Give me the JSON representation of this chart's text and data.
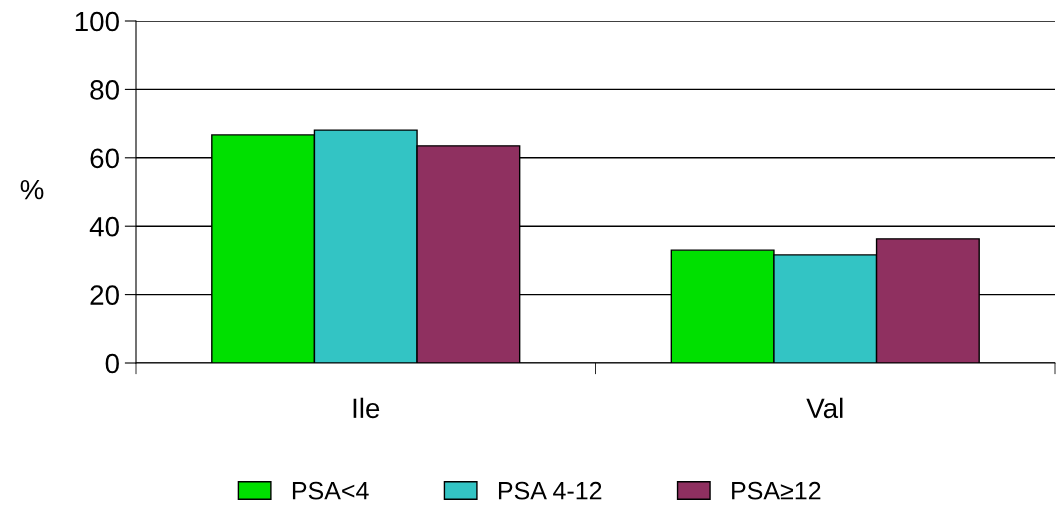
{
  "chart_data": {
    "type": "bar",
    "categories": [
      "Ile",
      "Val"
    ],
    "ylabel": "%",
    "series": [
      {
        "name": "PSA<4",
        "color": "#00e000",
        "values": [
          66.7,
          33.0
        ]
      },
      {
        "name": "PSA 4-12",
        "color": "#33c4c4",
        "values": [
          68.1,
          31.6
        ]
      },
      {
        "name": "PSA≥12",
        "color": "#8f3060",
        "values": [
          63.5,
          36.3
        ]
      }
    ],
    "ylim": [
      0,
      100
    ],
    "yticks": [
      0,
      20,
      40,
      60,
      80,
      100
    ],
    "grid": "y",
    "legend": "bottom"
  }
}
